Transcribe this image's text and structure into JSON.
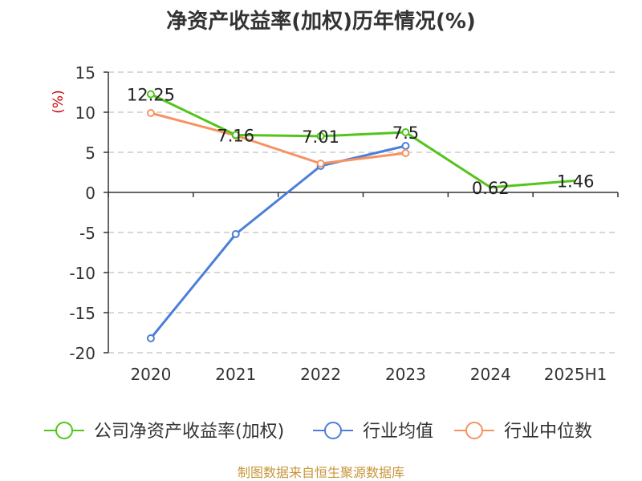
{
  "title": "净资产收益率(加权)历年情况(%)",
  "source_note": "制图数据来自恒生聚源数据库",
  "colors": {
    "grid": "#cccccc",
    "axis": "#333333",
    "text": "#333333",
    "unit": "#cc0000"
  },
  "chart_data": {
    "type": "line",
    "title": "净资产收益率(加权)历年情况(%)",
    "ylabel": "(%)",
    "ylim": [
      -20,
      15
    ],
    "yticks": [
      15,
      10,
      5,
      0,
      -5,
      -10,
      -15,
      -20
    ],
    "categories": [
      "2020",
      "2021",
      "2022",
      "2023",
      "2024",
      "2025H1"
    ],
    "grid": true,
    "legend_position": "bottom",
    "series": [
      {
        "name": "公司净资产收益率(加权)",
        "color": "#52c41a",
        "values": [
          12.25,
          7.16,
          7.01,
          7.5,
          0.62,
          1.46
        ],
        "labels": [
          "12.25",
          "7.16",
          "7.01",
          "7.5",
          "0.62",
          "1.46"
        ]
      },
      {
        "name": "行业均值",
        "color": "#4a7fd8",
        "values": [
          -18.2,
          -5.2,
          3.3,
          5.8,
          null,
          null
        ]
      },
      {
        "name": "行业中位数",
        "color": "#f79262",
        "values": [
          9.9,
          7.1,
          3.6,
          4.9,
          null,
          null
        ]
      }
    ]
  }
}
